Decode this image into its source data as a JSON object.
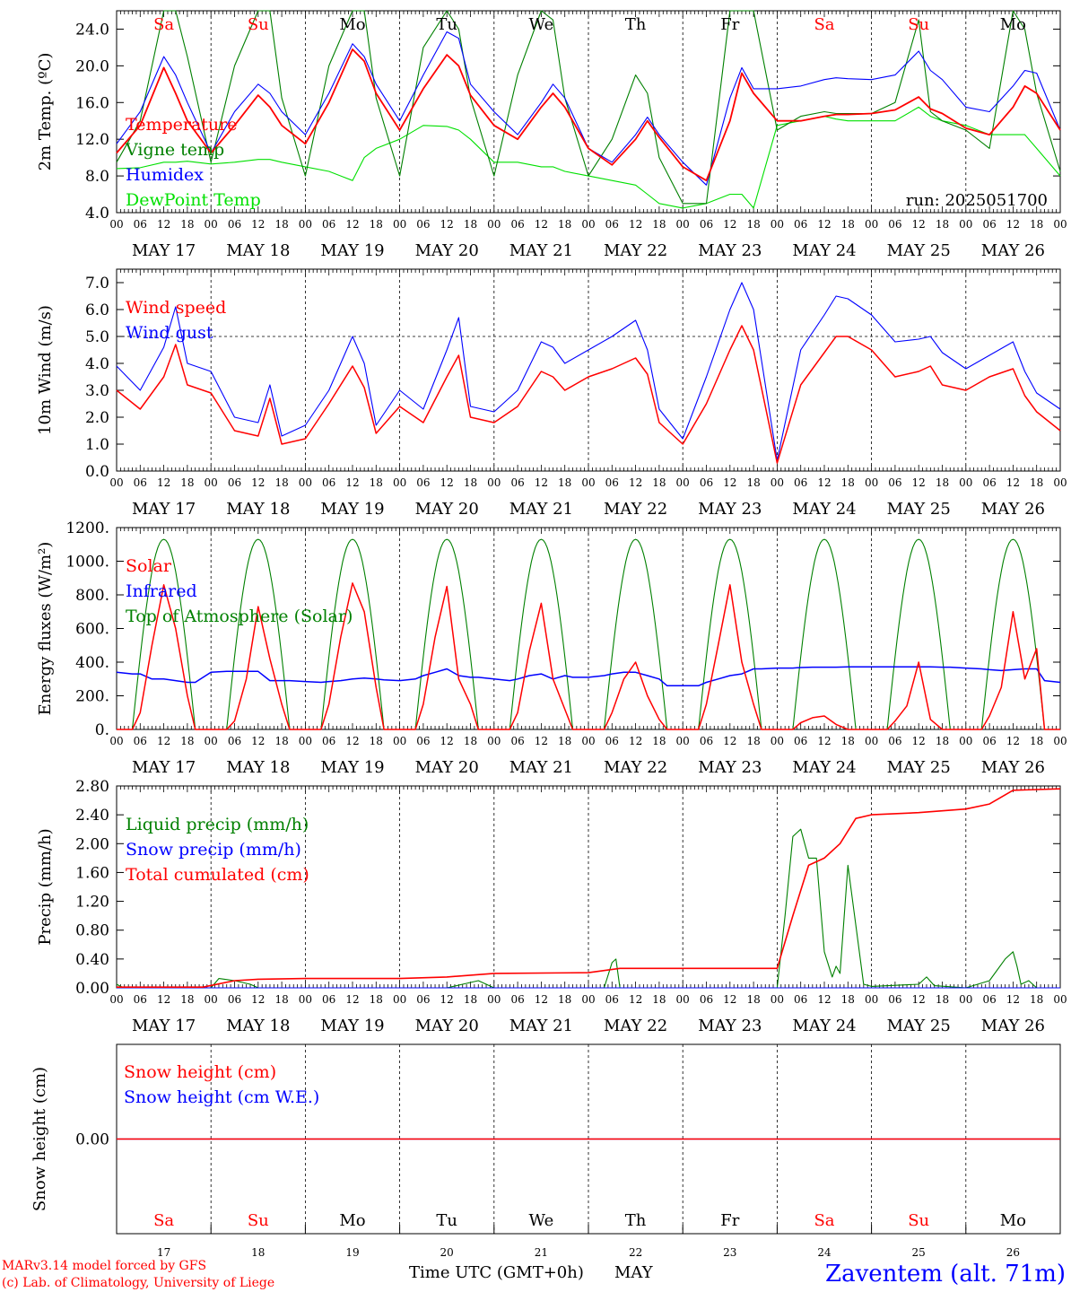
{
  "colors": {
    "temperature": "#ff0000",
    "vigne": "#008000",
    "humidex": "#0000ff",
    "dewpoint": "#00e000",
    "wind_speed": "#ff0000",
    "wind_gust": "#0000ff",
    "solar": "#ff0000",
    "infrared": "#0000ff",
    "toa": "#008000",
    "liquid": "#008000",
    "snow_precip": "#0000ff",
    "cumulated": "#ff0000",
    "snow_height": "#ff0000",
    "snow_we": "#0000ff",
    "weekend": "#ff0000",
    "weekday": "#000000",
    "location": "#0000ff"
  },
  "time_axis": {
    "hour_ticks": [
      "00",
      "06",
      "12",
      "18"
    ],
    "end_tick": "00",
    "date_labels": [
      "MAY 17",
      "MAY 18",
      "MAY 19",
      "MAY 20",
      "MAY 21",
      "MAY 22",
      "MAY 23",
      "MAY 24",
      "MAY 25",
      "MAY 26"
    ],
    "weekdays": [
      "Sa",
      "Su",
      "Mo",
      "Tu",
      "We",
      "Th",
      "Fr",
      "Sa",
      "Su",
      "Mo"
    ],
    "weekend_flags": [
      true,
      true,
      false,
      false,
      false,
      false,
      false,
      true,
      true,
      false
    ],
    "day_numbers": [
      "17",
      "18",
      "19",
      "20",
      "21",
      "22",
      "23",
      "24",
      "25",
      "26"
    ],
    "xlabel": "Time UTC (GMT+0h)",
    "month": "MAY"
  },
  "footer": {
    "credit_line1": "MARv3.14 model forced by GFS",
    "credit_line2": "(c) Lab. of Climatology, University of Liege",
    "location": "Zaventem (alt. 71m)"
  },
  "chart_data": [
    {
      "type": "line",
      "ylabel": "2m Temp. (ºC)",
      "ylim": [
        4.0,
        26.0
      ],
      "yticks": [
        "4.0",
        "8.0",
        "12.0",
        "16.0",
        "20.0",
        "24.0"
      ],
      "annotation": "run: 2025051700",
      "legend": [
        "Temperature",
        "Vigne temp",
        "Humidex",
        "DewPoint Temp"
      ],
      "x_hours": [
        0,
        6,
        12,
        15,
        18,
        24,
        30,
        36,
        39,
        42,
        48,
        54,
        60,
        63,
        66,
        72,
        78,
        84,
        87,
        90,
        96,
        102,
        108,
        111,
        114,
        120,
        126,
        132,
        135,
        138,
        144,
        150,
        156,
        159,
        162,
        168,
        174,
        180,
        183,
        186,
        192,
        198,
        204,
        207,
        210,
        216,
        222,
        228,
        231,
        234,
        240
      ],
      "series": [
        {
          "name": "Temperature",
          "values": [
            10.5,
            13.5,
            19.8,
            17,
            14,
            10.5,
            13.5,
            16.8,
            15.5,
            13.5,
            11.5,
            16,
            21.8,
            20.5,
            17,
            13,
            17.5,
            21.2,
            20,
            16.8,
            13.5,
            12,
            15.5,
            17,
            15.5,
            11,
            9.2,
            12,
            14,
            12.2,
            9,
            7.5,
            14,
            19.2,
            17,
            14,
            14,
            14.5,
            14.7,
            14.7,
            14.8,
            15.2,
            16.6,
            15.3,
            14.8,
            13.2,
            12.5,
            15.5,
            17.8,
            17,
            13
          ]
        },
        {
          "name": "Vigne temp",
          "values": [
            9.5,
            14,
            26,
            26,
            21,
            9.5,
            20,
            26,
            26,
            16.5,
            8,
            20,
            26,
            26,
            16.5,
            8,
            22,
            26,
            24,
            16.5,
            8,
            19,
            26,
            25,
            16.5,
            8,
            12,
            19,
            17,
            10,
            5,
            5,
            26,
            26,
            26,
            13,
            14.5,
            15,
            14.8,
            14.8,
            14.8,
            16,
            25,
            15,
            14,
            13,
            11,
            26,
            24,
            17,
            8.5
          ]
        },
        {
          "name": "Humidex",
          "values": [
            11.5,
            15,
            21,
            19,
            16,
            10.5,
            15,
            18,
            17,
            15,
            12.5,
            17,
            22.4,
            21,
            18,
            14,
            19,
            23.7,
            23,
            18,
            15,
            12.5,
            16,
            18,
            16.5,
            11,
            9.5,
            12.5,
            14.4,
            12.5,
            9.5,
            7,
            16.5,
            19.8,
            17.5,
            17.5,
            17.8,
            18.5,
            18.7,
            18.6,
            18.5,
            19,
            21.6,
            19.5,
            18.5,
            15.5,
            15,
            17.8,
            19.5,
            19.2,
            13
          ]
        },
        {
          "name": "DewPoint Temp",
          "values": [
            8.8,
            8.9,
            9.5,
            9.5,
            9.6,
            9.3,
            9.5,
            9.8,
            9.8,
            9.5,
            9,
            8.5,
            7.5,
            10,
            11,
            12,
            13.5,
            13.4,
            13,
            12,
            9.5,
            9.5,
            9,
            9,
            8.5,
            8,
            7.5,
            7,
            6,
            5,
            4.5,
            5,
            6,
            6,
            4.5,
            13.5,
            14,
            14.5,
            14.2,
            14,
            14,
            14,
            15.5,
            14.5,
            14,
            13.5,
            12.5,
            12.5,
            12.5,
            11,
            8
          ]
        }
      ]
    },
    {
      "type": "line",
      "ylabel": "10m Wind (m/s)",
      "ylim": [
        0.0,
        7.5
      ],
      "yticks": [
        "0.0",
        "1.0",
        "2.0",
        "3.0",
        "4.0",
        "5.0",
        "6.0",
        "7.0"
      ],
      "reference_line": 5.0,
      "legend": [
        "Wind speed",
        "Wind gust"
      ],
      "x_hours": [
        0,
        6,
        12,
        15,
        18,
        24,
        30,
        36,
        39,
        42,
        48,
        54,
        60,
        63,
        66,
        72,
        78,
        84,
        87,
        90,
        96,
        102,
        108,
        111,
        114,
        120,
        126,
        132,
        135,
        138,
        144,
        150,
        156,
        159,
        162,
        168,
        174,
        180,
        183,
        186,
        192,
        198,
        204,
        207,
        210,
        216,
        222,
        228,
        231,
        234,
        240
      ],
      "series": [
        {
          "name": "Wind speed",
          "values": [
            3.0,
            2.3,
            3.5,
            4.7,
            3.2,
            2.9,
            1.5,
            1.3,
            2.7,
            1.0,
            1.2,
            2.5,
            3.9,
            3.1,
            1.4,
            2.4,
            1.8,
            3.5,
            4.3,
            2.0,
            1.8,
            2.4,
            3.7,
            3.5,
            3.0,
            3.5,
            3.8,
            4.2,
            3.6,
            1.8,
            1.0,
            2.5,
            4.5,
            5.4,
            4.5,
            0.3,
            3.2,
            4.4,
            5.0,
            5.0,
            4.5,
            3.5,
            3.7,
            3.9,
            3.2,
            3.0,
            3.5,
            3.8,
            2.8,
            2.2,
            1.5
          ]
        },
        {
          "name": "Wind gust",
          "values": [
            3.9,
            3.0,
            4.6,
            6.1,
            4.0,
            3.7,
            2.0,
            1.8,
            3.2,
            1.3,
            1.7,
            3.0,
            5.0,
            4.0,
            1.7,
            3.0,
            2.3,
            4.5,
            5.7,
            2.4,
            2.2,
            3.0,
            4.8,
            4.6,
            4.0,
            4.5,
            5.0,
            5.6,
            4.5,
            2.3,
            1.2,
            3.5,
            6.0,
            7.0,
            6.0,
            0.4,
            4.5,
            5.8,
            6.5,
            6.4,
            5.8,
            4.8,
            4.9,
            5.0,
            4.4,
            3.8,
            4.3,
            4.8,
            3.7,
            2.9,
            2.3
          ]
        }
      ]
    },
    {
      "type": "line",
      "ylabel": "Energy fluxes (W/m²)",
      "ylim": [
        0,
        1200
      ],
      "yticks": [
        "0.",
        "200.",
        "400.",
        "600.",
        "800.",
        "1000.",
        "1200."
      ],
      "legend": [
        "Solar",
        "Infrared",
        "Top of Atmosphere (Solar)"
      ],
      "toa_daily_peak": 1130,
      "toa_hours": [
        4,
        20
      ],
      "x_hours": [
        0,
        4,
        6,
        9,
        12,
        15,
        18,
        20,
        24,
        28,
        30,
        33,
        36,
        39,
        42,
        44,
        48,
        52,
        54,
        57,
        60,
        63,
        66,
        68,
        72,
        76,
        78,
        81,
        84,
        87,
        90,
        92,
        96,
        100,
        102,
        105,
        108,
        111,
        114,
        116,
        120,
        124,
        126,
        129,
        132,
        135,
        138,
        140,
        144,
        148,
        150,
        153,
        156,
        159,
        162,
        164,
        168,
        172,
        174,
        177,
        180,
        183,
        186,
        188,
        192,
        196,
        198,
        201,
        204,
        207,
        210,
        212,
        216,
        220,
        222,
        225,
        228,
        231,
        234,
        236,
        240
      ],
      "series": [
        {
          "name": "Solar",
          "values": [
            0,
            0,
            100,
            500,
            860,
            600,
            200,
            0,
            0,
            0,
            50,
            300,
            730,
            420,
            150,
            0,
            0,
            0,
            150,
            550,
            870,
            700,
            250,
            0,
            0,
            0,
            150,
            550,
            850,
            300,
            150,
            0,
            0,
            0,
            100,
            470,
            750,
            300,
            120,
            0,
            0,
            0,
            100,
            300,
            400,
            200,
            60,
            0,
            0,
            0,
            150,
            500,
            860,
            400,
            150,
            0,
            0,
            0,
            40,
            70,
            80,
            30,
            0,
            0,
            0,
            0,
            50,
            140,
            400,
            60,
            0,
            0,
            0,
            0,
            80,
            250,
            700,
            300,
            480,
            0,
            0
          ]
        },
        {
          "name": "Infrared",
          "values": [
            340,
            330,
            330,
            300,
            300,
            290,
            280,
            280,
            340,
            345,
            345,
            345,
            345,
            290,
            290,
            290,
            285,
            280,
            285,
            290,
            300,
            305,
            300,
            295,
            290,
            300,
            320,
            340,
            360,
            320,
            310,
            310,
            300,
            290,
            300,
            320,
            330,
            300,
            320,
            310,
            310,
            320,
            330,
            340,
            340,
            320,
            300,
            260,
            260,
            260,
            280,
            300,
            320,
            330,
            360,
            360,
            365,
            365,
            368,
            370,
            370,
            370,
            372,
            372,
            372,
            372,
            372,
            372,
            372,
            372,
            370,
            370,
            365,
            360,
            355,
            350,
            355,
            360,
            360,
            290,
            280
          ]
        },
        {
          "name": "Top of Atmosphere (Solar)",
          "values": []
        }
      ]
    },
    {
      "type": "line",
      "ylabel": "Precip (mm/h)",
      "ylim": [
        0.0,
        2.8
      ],
      "yticks": [
        "0.00",
        "0.40",
        "0.80",
        "1.20",
        "1.60",
        "2.00",
        "2.40",
        "2.80"
      ],
      "legend": [
        "Liquid precip (mm/h)",
        "Snow precip (mm/h)",
        "Total cumulated (cm)"
      ],
      "series": [
        {
          "name": "Liquid precip (mm/h)",
          "x_hours": [
            0,
            1,
            2,
            24,
            26,
            30,
            34,
            36,
            40,
            84,
            88,
            92,
            96,
            100,
            124,
            126,
            127,
            128,
            168,
            170,
            172,
            174,
            176,
            178,
            180,
            182,
            183,
            184,
            186,
            190,
            192,
            204,
            206,
            208,
            216,
            222,
            226,
            228,
            229,
            230,
            232,
            234,
            240
          ],
          "values": [
            0.05,
            0.02,
            0,
            0,
            0.13,
            0.1,
            0.05,
            0,
            0,
            0,
            0.05,
            0.1,
            0,
            0,
            0,
            0.35,
            0.4,
            0,
            0,
            1.0,
            2.1,
            2.2,
            1.8,
            1.8,
            0.5,
            0.15,
            0.3,
            0.2,
            1.7,
            0.05,
            0.02,
            0.05,
            0.15,
            0.03,
            0,
            0.1,
            0.4,
            0.5,
            0.3,
            0.05,
            0.1,
            0,
            0
          ]
        },
        {
          "name": "Snow precip (mm/h)",
          "x_hours": [
            0,
            240
          ],
          "values": [
            0,
            0
          ]
        },
        {
          "name": "Total cumulated (cm)",
          "x_hours": [
            0,
            22,
            30,
            36,
            48,
            72,
            84,
            96,
            120,
            128,
            144,
            168,
            172,
            176,
            180,
            184,
            188,
            192,
            204,
            216,
            222,
            228,
            240
          ],
          "values": [
            0.01,
            0.01,
            0.1,
            0.12,
            0.13,
            0.13,
            0.15,
            0.2,
            0.21,
            0.27,
            0.27,
            0.27,
            1.0,
            1.7,
            1.8,
            2.0,
            2.35,
            2.4,
            2.43,
            2.48,
            2.55,
            2.74,
            2.76
          ]
        }
      ]
    },
    {
      "type": "line",
      "ylabel": "Snow height (cm)",
      "yticks": [
        "0.00"
      ],
      "legend": [
        "Snow height (cm)",
        "Snow height (cm W.E.)"
      ],
      "series": [
        {
          "name": "Snow height (cm)",
          "x_hours": [
            0,
            240
          ],
          "values": [
            0,
            0
          ]
        },
        {
          "name": "Snow height (cm W.E.)",
          "x_hours": [
            0,
            240
          ],
          "values": [
            0,
            0
          ]
        }
      ]
    }
  ]
}
